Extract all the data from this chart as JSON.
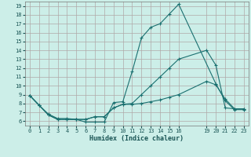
{
  "xlabel": "Humidex (Indice chaleur)",
  "bg_color": "#cceee8",
  "grid_color": "#b0a8a8",
  "line_color": "#1a7070",
  "xlim": [
    -0.5,
    23.5
  ],
  "ylim": [
    5.5,
    19.5
  ],
  "xticks": [
    0,
    1,
    2,
    3,
    4,
    5,
    6,
    7,
    8,
    9,
    10,
    11,
    12,
    13,
    14,
    15,
    16,
    19,
    20,
    21,
    22,
    23
  ],
  "yticks": [
    6,
    7,
    8,
    9,
    10,
    11,
    12,
    13,
    14,
    15,
    16,
    17,
    18,
    19
  ],
  "line1_x": [
    0,
    1,
    2,
    3,
    4,
    5,
    6,
    7,
    8,
    9,
    10,
    11,
    12,
    13,
    14,
    15,
    16,
    20,
    21,
    22,
    23
  ],
  "line1_y": [
    8.9,
    7.8,
    6.8,
    6.3,
    6.3,
    6.2,
    5.9,
    5.9,
    5.9,
    8.1,
    8.2,
    11.6,
    15.4,
    16.6,
    17.0,
    18.1,
    19.2,
    10.2,
    8.3,
    7.3,
    7.3
  ],
  "line2_x": [
    0,
    1,
    2,
    3,
    4,
    5,
    6,
    7,
    8,
    9,
    10,
    11,
    12,
    13,
    14,
    15,
    16,
    19,
    20,
    21,
    22,
    23
  ],
  "line2_y": [
    8.9,
    7.8,
    6.7,
    6.2,
    6.2,
    6.2,
    6.2,
    6.5,
    6.5,
    7.5,
    7.9,
    7.9,
    8.0,
    8.2,
    8.4,
    8.7,
    9.0,
    10.5,
    10.1,
    8.5,
    7.4,
    7.4
  ],
  "line3_x": [
    0,
    1,
    2,
    3,
    4,
    5,
    6,
    7,
    8,
    9,
    10,
    11,
    12,
    13,
    14,
    15,
    16,
    19,
    20,
    21,
    22,
    23
  ],
  "line3_y": [
    8.9,
    7.8,
    6.7,
    6.2,
    6.2,
    6.2,
    6.2,
    6.5,
    6.5,
    7.5,
    7.9,
    8.0,
    9.0,
    10.0,
    11.0,
    12.0,
    13.0,
    14.0,
    12.3,
    7.5,
    7.4,
    7.4
  ]
}
